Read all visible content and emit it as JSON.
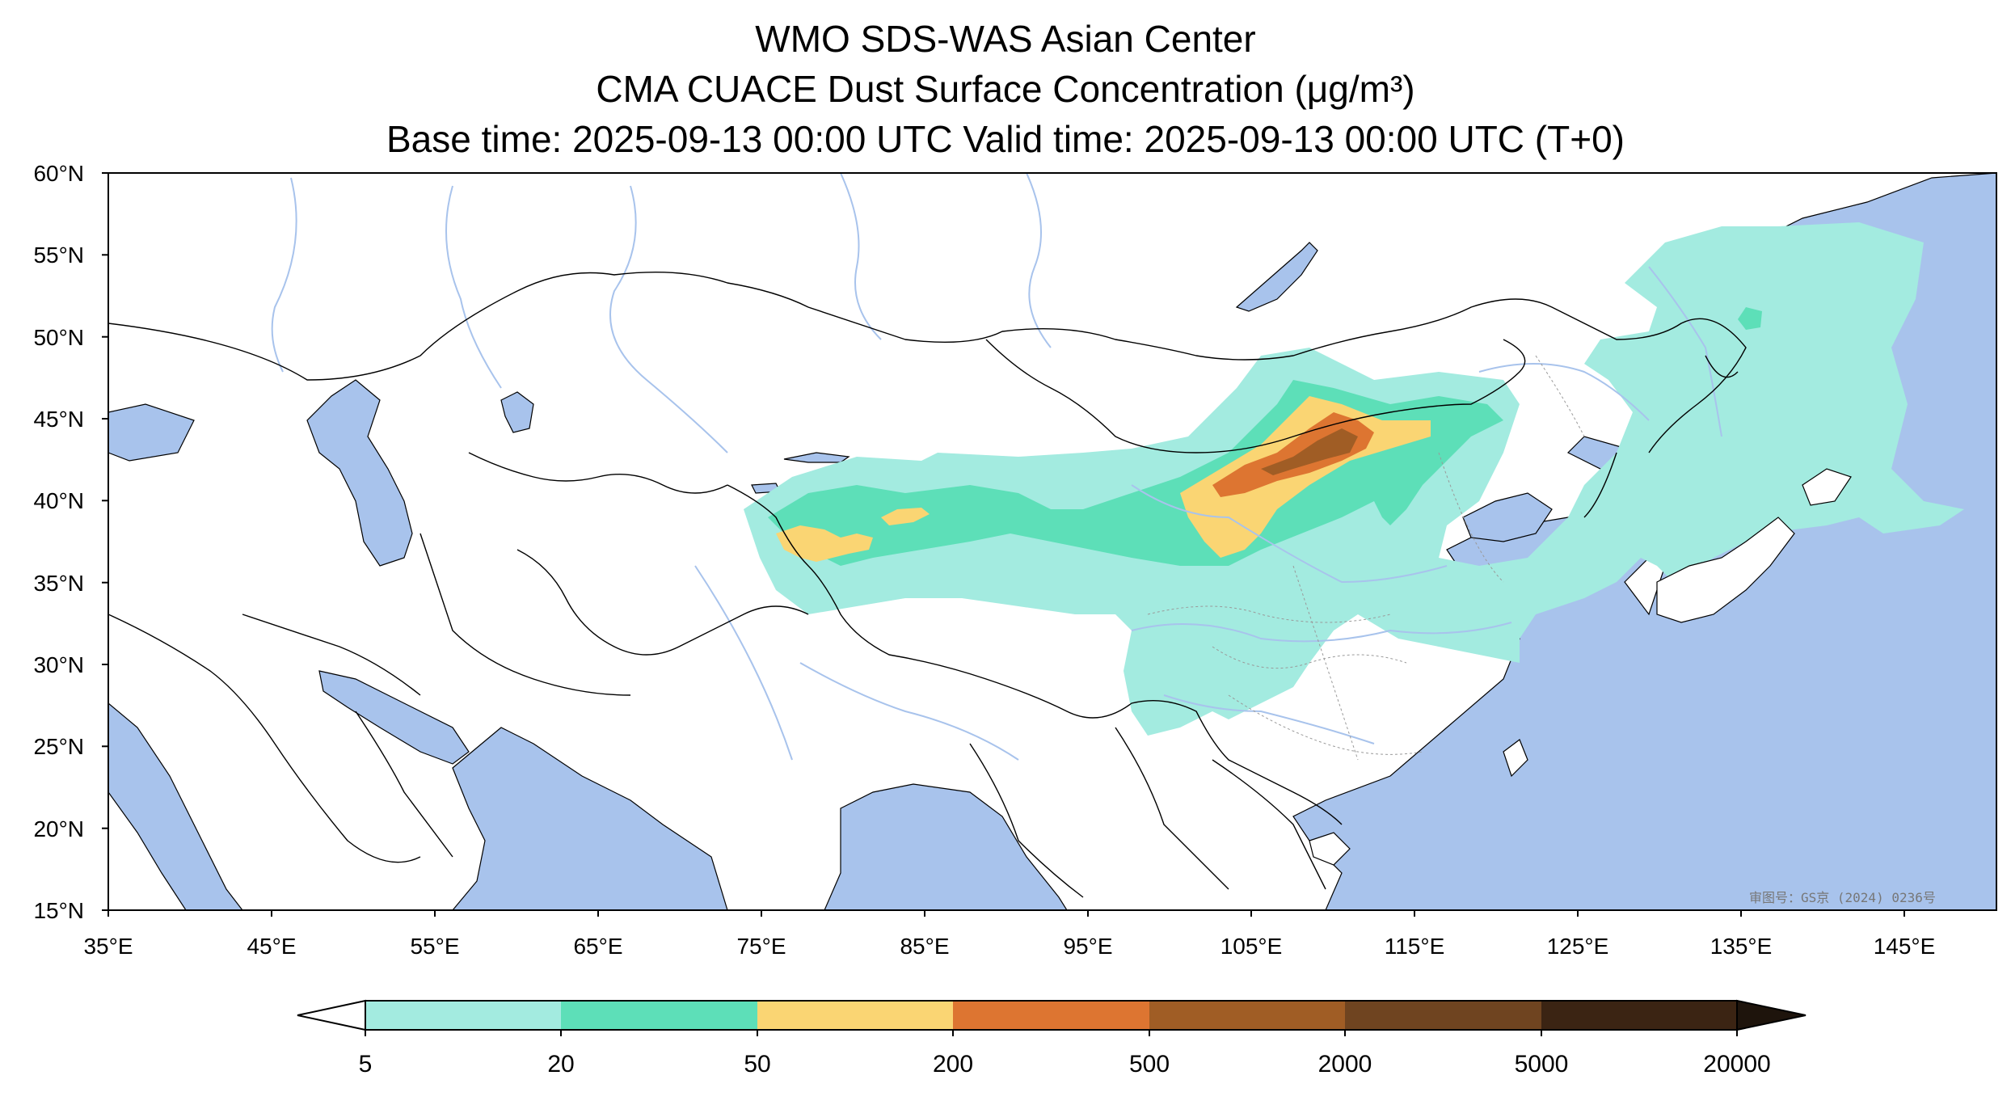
{
  "header": {
    "title": "WMO SDS-WAS Asian Center",
    "subtitle": "CMA CUACE Dust Surface Concentration (μg/m³)",
    "time_line": "Base time: 2025-09-13 00:00 UTC Valid time: 2025-09-13 00:00 UTC (T+0)"
  },
  "map": {
    "ocean_color": "#a8c3ec",
    "land_color": "#ffffff",
    "border_color": "#000000",
    "river_color": "#a8c3ec",
    "lat_labels": [
      "60°N",
      "55°N",
      "50°N",
      "45°N",
      "40°N",
      "35°N",
      "30°N",
      "25°N",
      "20°N",
      "15°N"
    ],
    "lon_labels": [
      "35°E",
      "45°E",
      "55°E",
      "65°E",
      "75°E",
      "85°E",
      "95°E",
      "105°E",
      "115°E",
      "125°E",
      "135°E",
      "145°E"
    ],
    "credit": "审图号：GS京 (2024) 0236号"
  },
  "colorbar": {
    "ticks": [
      "5",
      "20",
      "50",
      "200",
      "500",
      "2000",
      "5000",
      "20000"
    ],
    "colors": [
      "#a3ebe0",
      "#5ddfb8",
      "#fad573",
      "#dd7531",
      "#a05d25",
      "#6f4420",
      "#3b2413",
      "#1e140c"
    ]
  }
}
